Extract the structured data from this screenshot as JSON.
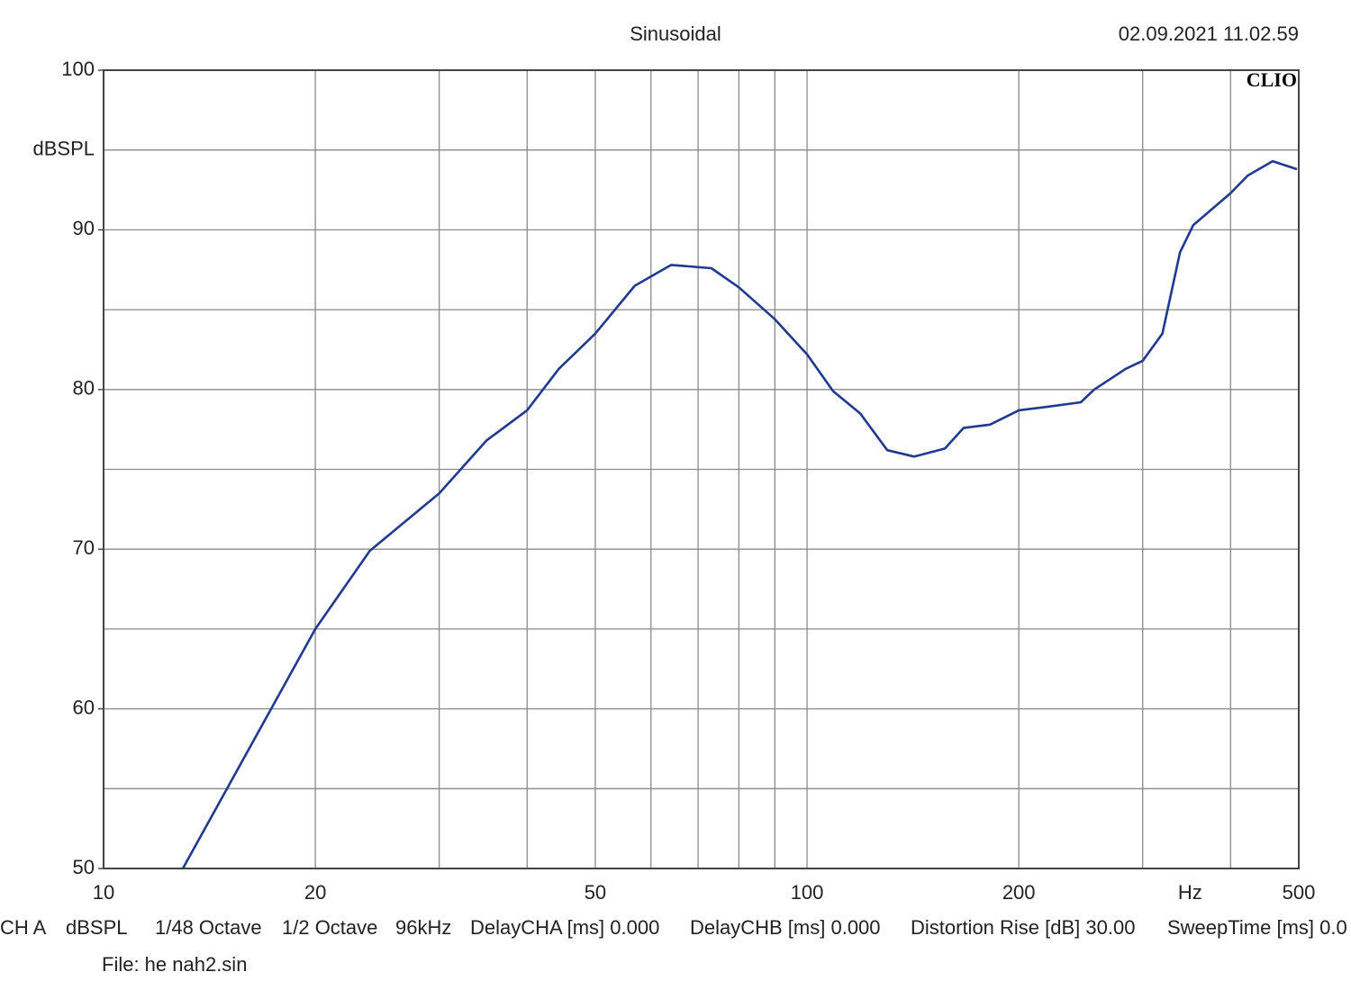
{
  "chart_data": {
    "type": "line",
    "title": "Sinusoidal",
    "timestamp": "02.09.2021 11.02.59",
    "brand": "CLIO",
    "y_unit_label": "dBSPL",
    "x_unit_label": "Hz",
    "xscale": "log",
    "grid": true,
    "xlim": [
      10,
      500
    ],
    "ylim": [
      50,
      100
    ],
    "xticks": [
      10,
      20,
      50,
      100,
      200,
      500
    ],
    "xminor": [
      30,
      40,
      60,
      70,
      80,
      90,
      300,
      400
    ],
    "yticks": [
      50,
      60,
      70,
      80,
      90,
      100
    ],
    "yminor": [
      55,
      65,
      75,
      85,
      95
    ],
    "series": [
      {
        "color": "#1f3a8f",
        "x": [
          12.96,
          20,
          23.9,
          30,
          35.0,
          40,
          44.4,
          50,
          56.9,
          64.1,
          73.1,
          80,
          90,
          100,
          108.9,
          119,
          130,
          142,
          157,
          167,
          182,
          200,
          218,
          245,
          256,
          284,
          300,
          320,
          339,
          354,
          381,
          400,
          423,
          459,
          497
        ],
        "values": [
          50,
          65,
          69.9,
          73.5,
          76.8,
          78.7,
          81.3,
          83.5,
          86.5,
          87.8,
          87.6,
          86.4,
          84.4,
          82.2,
          79.9,
          78.5,
          76.2,
          75.8,
          76.3,
          77.6,
          77.8,
          78.7,
          78.9,
          79.2,
          80.0,
          81.3,
          81.8,
          83.5,
          88.6,
          90.3,
          91.5,
          92.3,
          93.4,
          94.3,
          93.8
        ]
      }
    ],
    "info": [
      "CH A",
      "dBSPL",
      "1/48 Octave",
      "1/2 Octave",
      "96kHz",
      "DelayCHA [ms] 0.000",
      "DelayCHB [ms] 0.000",
      "Distortion Rise [dB] 30.00",
      "SweepTime [ms] 0.0"
    ],
    "file": "File: he nah2.sin"
  }
}
